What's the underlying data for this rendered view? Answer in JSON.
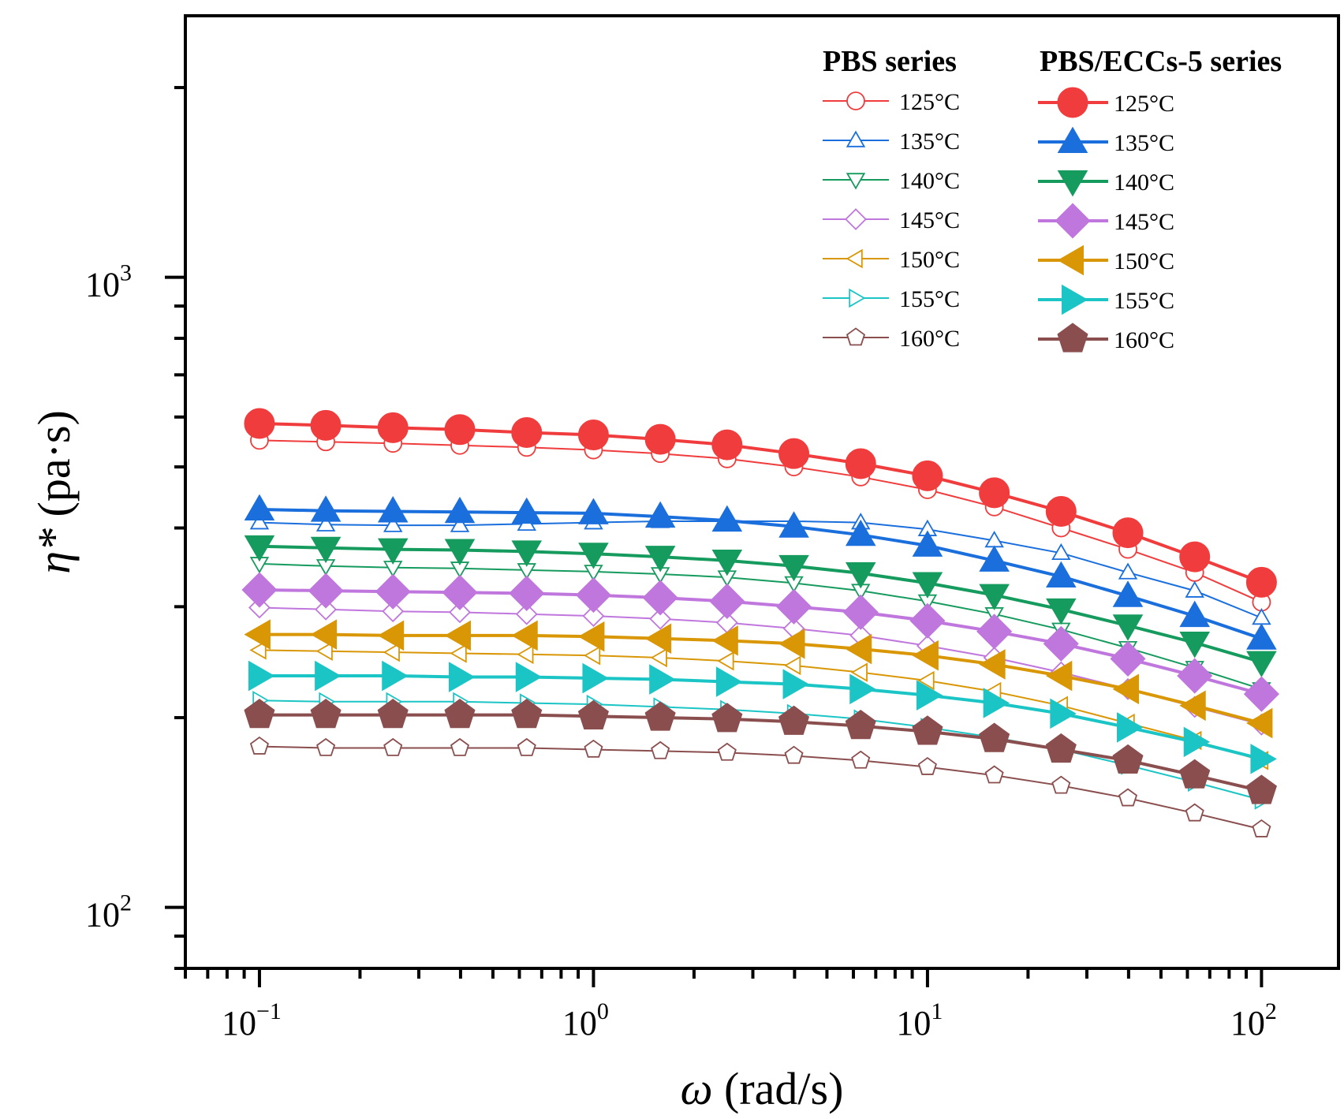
{
  "chart_data": {
    "type": "line",
    "xscale": "log",
    "yscale": "log",
    "xlim": [
      0.06,
      170
    ],
    "ylim": [
      80,
      2600
    ],
    "xlabel": {
      "symbol": "ω",
      "unit": " (rad/s)"
    },
    "ylabel": {
      "symbol": "η*",
      "unit": " (pa·s)"
    },
    "x_ticks": [
      {
        "value": 0.1,
        "base": "10",
        "exp": "−1"
      },
      {
        "value": 1,
        "base": "10",
        "exp": "0"
      },
      {
        "value": 10,
        "base": "10",
        "exp": "1"
      },
      {
        "value": 100,
        "base": "10",
        "exp": "2"
      }
    ],
    "y_ticks": [
      {
        "value": 100,
        "base": "10",
        "exp": "2"
      },
      {
        "value": 1000,
        "base": "10",
        "exp": "3"
      }
    ],
    "x": [
      0.1,
      0.158,
      0.251,
      0.398,
      0.631,
      1.0,
      1.585,
      2.512,
      3.981,
      6.31,
      10.0,
      15.85,
      25.12,
      39.81,
      63.1,
      100.0
    ],
    "legend": {
      "groups": [
        {
          "title": "PBS series",
          "filled": false
        },
        {
          "title": "PBS/ECCs-5 series",
          "filled": true
        }
      ]
    },
    "series": [
      {
        "name": "PBS 125°C",
        "group": 0,
        "label": "125°C",
        "color": "#f03c3c",
        "marker": "circle",
        "filled": false,
        "values": [
          551,
          548,
          545,
          541,
          537,
          532,
          525,
          515,
          500,
          482,
          460,
          432,
          400,
          370,
          340,
          305
        ]
      },
      {
        "name": "PBS 135°C",
        "group": 0,
        "label": "135°C",
        "color": "#1a6fdd",
        "marker": "triangle-up",
        "filled": false,
        "values": [
          408,
          405,
          404,
          404,
          406,
          408,
          410,
          410,
          410,
          408,
          398,
          382,
          365,
          340,
          318,
          288
        ]
      },
      {
        "name": "PBS 140°C",
        "group": 0,
        "label": "140°C",
        "color": "#169b5e",
        "marker": "triangle-down",
        "filled": false,
        "values": [
          351,
          348,
          346,
          345,
          343,
          341,
          338,
          334,
          327,
          318,
          306,
          292,
          276,
          258,
          240,
          222
        ]
      },
      {
        "name": "PBS 145°C",
        "group": 0,
        "label": "145°C",
        "color": "#c077dd",
        "marker": "diamond",
        "filled": false,
        "values": [
          299,
          297,
          295,
          294,
          292,
          290,
          287,
          283,
          277,
          270,
          260,
          249,
          236,
          222,
          208,
          195
        ]
      },
      {
        "name": "PBS 150°C",
        "group": 0,
        "label": "150°C",
        "color": "#d99706",
        "marker": "triangle-left",
        "filled": false,
        "values": [
          256,
          255,
          254,
          253,
          252,
          251,
          249,
          246,
          242,
          236,
          229,
          220,
          209,
          196,
          184,
          171
        ]
      },
      {
        "name": "PBS 155°C",
        "group": 0,
        "label": "155°C",
        "color": "#1cc5c5",
        "marker": "triangle-right",
        "filled": false,
        "values": [
          213,
          212,
          212,
          212,
          211,
          210,
          208,
          206,
          203,
          199,
          193,
          186,
          178,
          168,
          158,
          148
        ]
      },
      {
        "name": "PBS 160°C",
        "group": 0,
        "label": "160°C",
        "color": "#8b4e4e",
        "marker": "pentagon",
        "filled": false,
        "values": [
          180,
          179,
          179,
          179,
          179,
          178,
          177,
          176,
          174,
          171,
          167,
          162,
          156,
          149,
          141,
          133
        ]
      },
      {
        "name": "PBS/ECCs-5 125°C",
        "group": 1,
        "label": "125°C",
        "color": "#f03c3c",
        "marker": "circle",
        "filled": true,
        "values": [
          586,
          582,
          577,
          573,
          567,
          562,
          553,
          542,
          525,
          506,
          484,
          455,
          425,
          393,
          360,
          328
        ]
      },
      {
        "name": "PBS/ECCs-5 135°C",
        "group": 1,
        "label": "135°C",
        "color": "#1a6fdd",
        "marker": "triangle-up",
        "filled": true,
        "values": [
          428,
          426,
          425,
          424,
          423,
          422,
          417,
          411,
          402,
          390,
          375,
          355,
          335,
          312,
          290,
          267
        ]
      },
      {
        "name": "PBS/ECCs-5 140°C",
        "group": 1,
        "label": "140°C",
        "color": "#169b5e",
        "marker": "triangle-down",
        "filled": true,
        "values": [
          374,
          372,
          370,
          369,
          367,
          364,
          360,
          355,
          348,
          339,
          327,
          313,
          297,
          280,
          263,
          245
        ]
      },
      {
        "name": "PBS/ECCs-5 145°C",
        "group": 1,
        "label": "145°C",
        "color": "#c077dd",
        "marker": "diamond",
        "filled": true,
        "values": [
          319,
          318,
          317,
          316,
          315,
          313,
          310,
          306,
          300,
          294,
          285,
          274,
          262,
          248,
          233,
          218
        ]
      },
      {
        "name": "PBS/ECCs-5 150°C",
        "group": 1,
        "label": "150°C",
        "color": "#d99706",
        "marker": "triangle-left",
        "filled": true,
        "values": [
          271,
          271,
          270,
          270,
          270,
          269,
          267,
          265,
          262,
          257,
          251,
          243,
          233,
          222,
          209,
          196
        ]
      },
      {
        "name": "PBS/ECCs-5 155°C",
        "group": 1,
        "label": "155°C",
        "color": "#1cc5c5",
        "marker": "triangle-right",
        "filled": true,
        "values": [
          233,
          233,
          233,
          232,
          232,
          231,
          230,
          228,
          226,
          222,
          217,
          211,
          203,
          193,
          183,
          172
        ]
      },
      {
        "name": "PBS/ECCs-5 160°C",
        "group": 1,
        "label": "160°C",
        "color": "#8b4e4e",
        "marker": "pentagon",
        "filled": true,
        "values": [
          202,
          202,
          202,
          202,
          202,
          201,
          200,
          199,
          197,
          194,
          190,
          185,
          178,
          171,
          162,
          153
        ]
      }
    ]
  }
}
